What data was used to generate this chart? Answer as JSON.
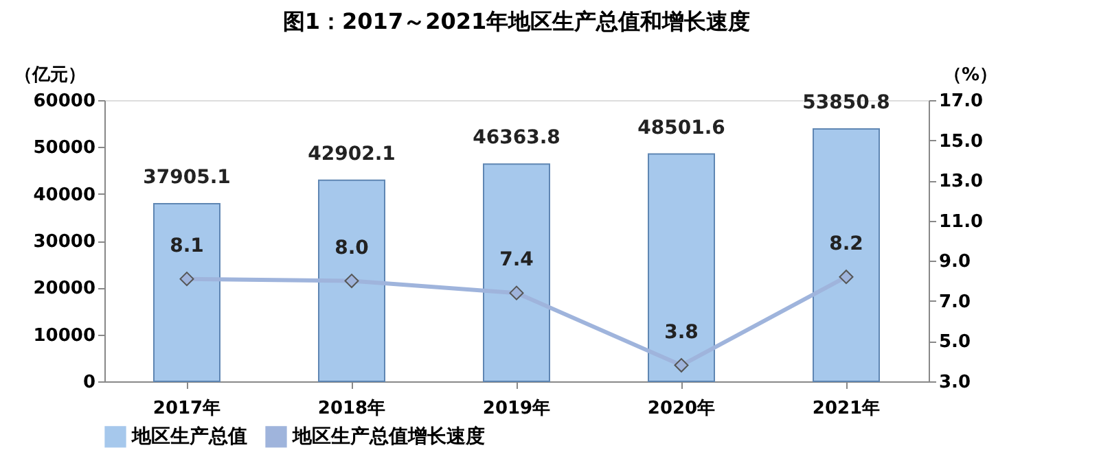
{
  "chart_data": {
    "type": "bar",
    "title": "图1：2017～2021年地区生产总值和增长速度",
    "ylabel": "（亿元）",
    "y2label": "（%）",
    "categories": [
      "2017年",
      "2018年",
      "2019年",
      "2020年",
      "2021年"
    ],
    "series": [
      {
        "name": "地区生产总值",
        "color": "#a6c8ec",
        "values": [
          37905.1,
          42902.1,
          46363.8,
          48501.6,
          53850.8
        ],
        "value_labels": [
          "37905.1",
          "42902.1",
          "46363.8",
          "48501.6",
          "53850.8"
        ]
      },
      {
        "name": "地区生产总值增长速度",
        "type": "line",
        "axis": "y2",
        "color": "#9fb4dc",
        "marker": "diamond",
        "values": [
          8.1,
          8.0,
          7.4,
          3.8,
          8.2
        ],
        "value_labels": [
          "8.1",
          "8.0",
          "7.4",
          "3.8",
          "8.2"
        ]
      }
    ],
    "ylim": [
      0,
      60000
    ],
    "yticks": [
      0,
      10000,
      20000,
      30000,
      40000,
      50000,
      60000
    ],
    "y2lim": [
      3,
      17
    ],
    "y2ticks": [
      {
        "value": 3,
        "label": "3.0"
      },
      {
        "value": 5,
        "label": "5.0"
      },
      {
        "value": 7,
        "label": "7.0"
      },
      {
        "value": 9,
        "label": "9.0"
      },
      {
        "value": 11,
        "label": "11.0"
      },
      {
        "value": 13,
        "label": "13.0"
      },
      {
        "value": 15,
        "label": "15.0"
      },
      {
        "value": 17,
        "label": "17.0"
      }
    ],
    "grid": false,
    "legend": "bottom"
  }
}
